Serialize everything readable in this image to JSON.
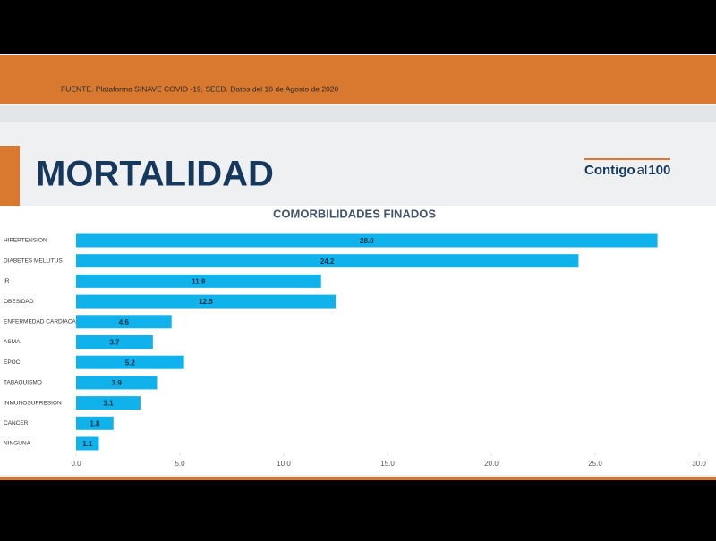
{
  "header": {
    "source": "FUENTE. Plataforma SINAVE COVID -19, SEED. Datos del 18 de Agosto de 2020"
  },
  "slide": {
    "title": "MORTALIDAD",
    "logo": [
      "Contigo",
      "al",
      "100"
    ]
  },
  "chart_data": {
    "type": "bar",
    "orientation": "horizontal",
    "title": "COMORBILIDADES FINADOS",
    "categories": [
      "HIPERTENSION",
      "DIABETES MELLITUS",
      "IR",
      "OBESIDAD",
      "ENFERMEDAD CARDIACA",
      "ASMA",
      "EPOC",
      "TABAQUISMO",
      "INMUNOSUPRESION",
      "CANCER",
      "NINGUNA"
    ],
    "values": [
      28,
      24.2,
      11.8,
      12.5,
      4.6,
      3.7,
      5.2,
      3.9,
      3.1,
      1.8,
      1.1
    ],
    "value_labels": [
      "28.0",
      "24.2",
      "11.8",
      "12.5",
      "4.6",
      "3.7",
      "5.2",
      "3.9",
      "3.1",
      "1.8",
      "1.1"
    ],
    "color": "#10b2ec",
    "xlim": [
      0,
      30
    ],
    "xticks": [
      {
        "value": 0,
        "label": "0.0"
      },
      {
        "value": 5,
        "label": "5.0"
      },
      {
        "value": 10,
        "label": "10.0"
      },
      {
        "value": 15,
        "label": "15.0"
      },
      {
        "value": 20,
        "label": "20.0"
      },
      {
        "value": 25,
        "label": "25.0"
      },
      {
        "value": 30,
        "label": "30.0"
      }
    ],
    "grid": false
  }
}
